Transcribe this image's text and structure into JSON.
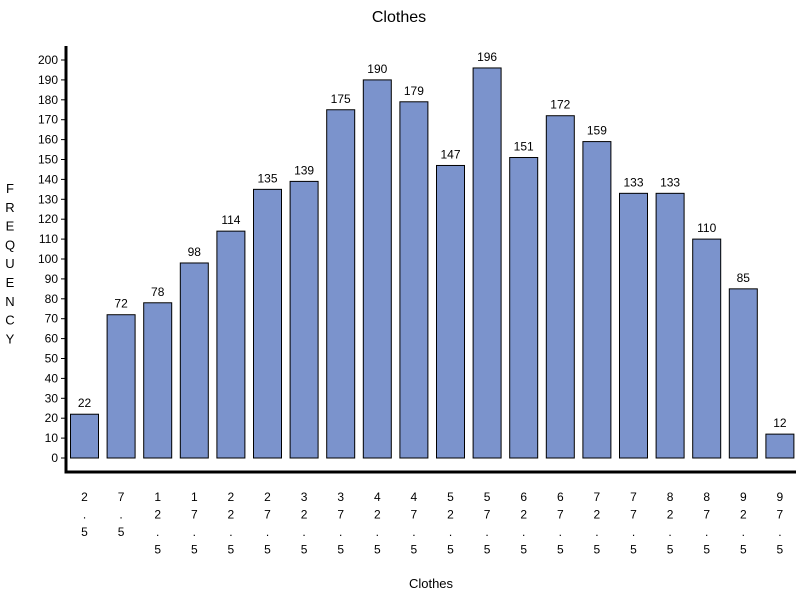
{
  "chart_data": {
    "type": "bar",
    "title": "Clothes",
    "xlabel": "Clothes",
    "ylabel": "FREQUENCY",
    "categories": [
      "2.5",
      "7.5",
      "12.5",
      "17.5",
      "22.5",
      "27.5",
      "32.5",
      "37.5",
      "42.5",
      "47.5",
      "52.5",
      "57.5",
      "62.5",
      "67.5",
      "72.5",
      "77.5",
      "82.5",
      "87.5",
      "92.5",
      "97.5"
    ],
    "values": [
      22,
      72,
      78,
      98,
      114,
      135,
      139,
      175,
      190,
      179,
      147,
      196,
      151,
      172,
      159,
      133,
      133,
      110,
      85,
      12
    ],
    "ylim": [
      0,
      200
    ],
    "yticks": [
      0,
      10,
      20,
      30,
      40,
      50,
      60,
      70,
      80,
      90,
      100,
      110,
      120,
      130,
      140,
      150,
      160,
      170,
      180,
      190,
      200
    ],
    "grid": false,
    "bar_color": "#7b93cc"
  }
}
